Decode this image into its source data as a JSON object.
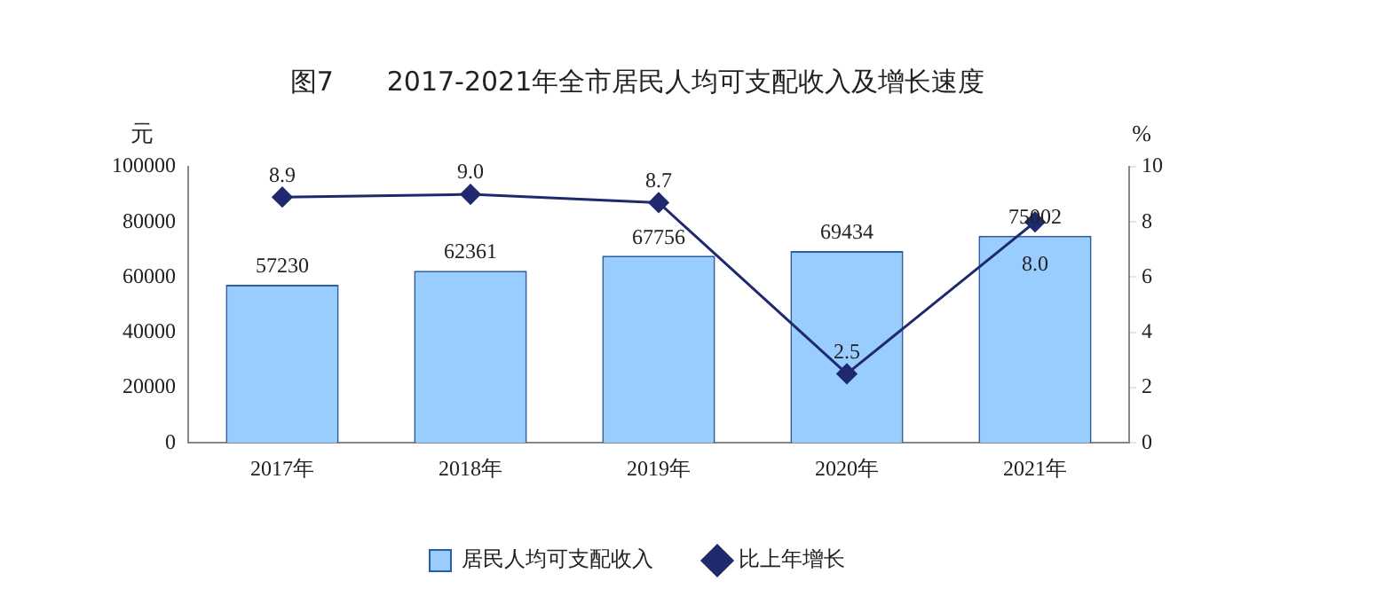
{
  "chart_data": {
    "type": "bar",
    "title": "图7　　2017-2021年全市居民人均可支配收入及增长速度",
    "ylabel": "元",
    "y2label": "%",
    "categories": [
      "2017年",
      "2018年",
      "2019年",
      "2020年",
      "2021年"
    ],
    "series": [
      {
        "name": "居民人均可支配收入",
        "color": "#99ccff",
        "values": [
          57230,
          62361,
          67756,
          69434,
          75002
        ]
      },
      {
        "name": "比上年增长",
        "type": "line",
        "axis": "y2",
        "color": "#1f2a6e",
        "marker": "diamond",
        "values": [
          8.9,
          9.0,
          8.7,
          2.5,
          8.0
        ],
        "value_labels": [
          "8.9",
          "9.0",
          "8.7",
          "2.5",
          "8.0"
        ]
      }
    ],
    "ylim": [
      0,
      100000
    ],
    "yticks": [
      0,
      20000,
      40000,
      60000,
      80000,
      100000
    ],
    "y2lim": [
      0,
      10
    ],
    "y2ticks": [
      0,
      2,
      4,
      6,
      8,
      10
    ],
    "grid": false,
    "legend": "bottom",
    "data_labels": true
  }
}
